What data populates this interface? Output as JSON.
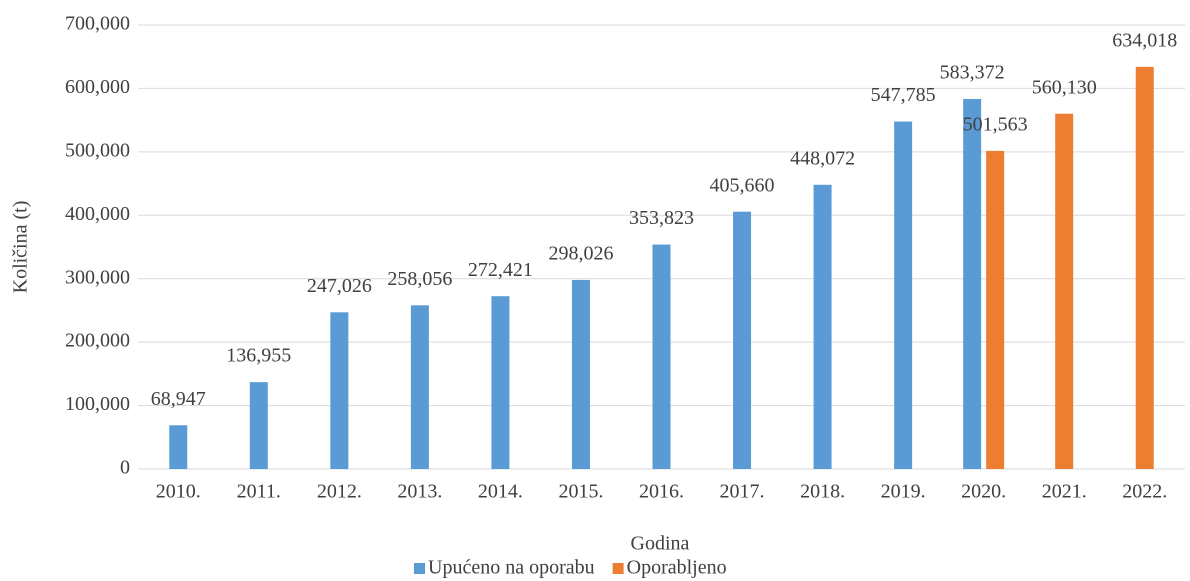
{
  "chart_data": {
    "type": "bar",
    "x_label": "Godina",
    "y_label": "Količina (t)",
    "categories": [
      "2010.",
      "2011.",
      "2012.",
      "2013.",
      "2014.",
      "2015.",
      "2016.",
      "2017.",
      "2018.",
      "2019.",
      "2020.",
      "2021.",
      "2022."
    ],
    "series": [
      {
        "name": "Upućeno na oporabu",
        "color": "#5b9bd5",
        "values": [
          68947,
          136955,
          247026,
          258056,
          272421,
          298026,
          353823,
          405660,
          448072,
          547785,
          583372,
          null,
          null
        ],
        "value_labels": [
          "68,947",
          "136,955",
          "247,026",
          "258,056",
          "272,421",
          "298,026",
          "353,823",
          "405,660",
          "448,072",
          "547,785",
          "583,372",
          null,
          null
        ]
      },
      {
        "name": "Oporabljeno",
        "color": "#ed7d31",
        "values": [
          null,
          null,
          null,
          null,
          null,
          null,
          null,
          null,
          null,
          null,
          501563,
          560130,
          634018
        ],
        "value_labels": [
          null,
          null,
          null,
          null,
          null,
          null,
          null,
          null,
          null,
          null,
          "501,563",
          "560,130",
          "634,018"
        ]
      }
    ],
    "ylim": [
      0,
      700000
    ],
    "yticks": [
      0,
      {
        "value": 100000,
        "label": "100,000"
      },
      {
        "value": 200000,
        "label": "200,000"
      },
      {
        "value": 300000,
        "label": "300,000"
      },
      {
        "value": 400000,
        "label": "400,000"
      },
      {
        "value": 500000,
        "label": "500,000"
      },
      {
        "value": 600000,
        "label": "600,000"
      },
      {
        "value": 700000,
        "label": "700,000"
      }
    ],
    "grid": true,
    "legend": "bottom"
  }
}
